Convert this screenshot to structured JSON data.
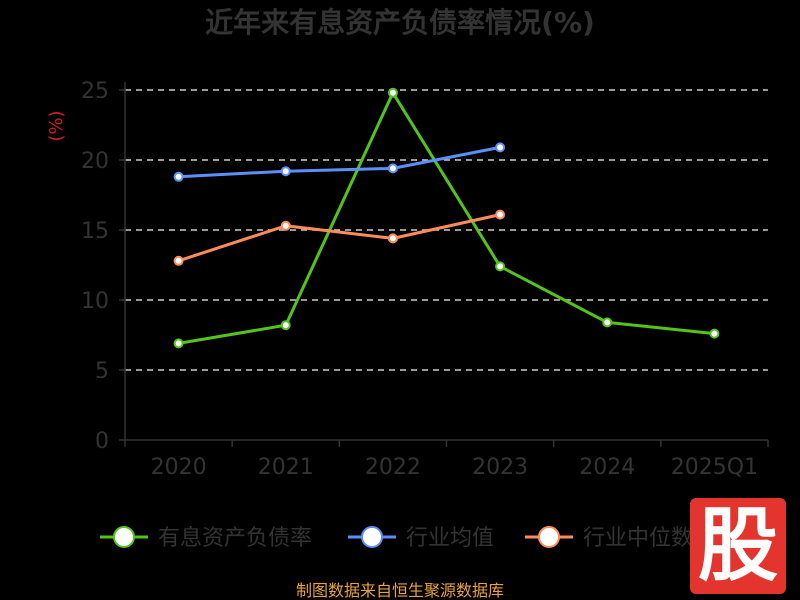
{
  "chart_data": {
    "type": "line",
    "title": "近年来有息资产负债率情况(%)",
    "ylabel": "(%)",
    "categories": [
      "2020",
      "2021",
      "2022",
      "2023",
      "2024",
      "2025Q1"
    ],
    "yticks": [
      "0",
      "5",
      "10",
      "15",
      "20",
      "25"
    ],
    "ylim": [
      0,
      25
    ],
    "grid": true,
    "legend_position": "bottom",
    "series": [
      {
        "name": "有息资产负债率",
        "color": "#52c41a",
        "values": [
          6.9,
          8.2,
          24.8,
          12.4,
          8.4,
          7.6
        ]
      },
      {
        "name": "行业均值",
        "color": "#5b8ff9",
        "values": [
          18.8,
          19.2,
          19.4,
          20.9,
          null,
          null
        ]
      },
      {
        "name": "行业中位数",
        "color": "#ff8c5a",
        "values": [
          12.8,
          15.3,
          14.4,
          16.1,
          null,
          null
        ]
      }
    ]
  },
  "source": "制图数据来自恒生聚源数据库",
  "watermark_text": "股"
}
